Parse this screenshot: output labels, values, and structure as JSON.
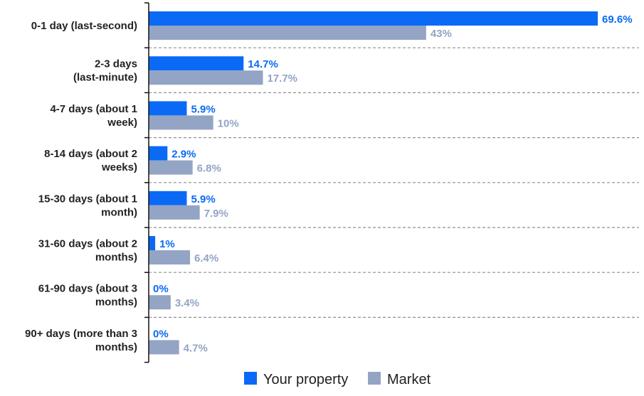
{
  "chart_data": {
    "type": "bar",
    "orientation": "horizontal",
    "categories": [
      [
        "0-1 day (last-second)"
      ],
      [
        "2-3 days",
        "(last-minute)"
      ],
      [
        "4-7 days (about 1",
        "week)"
      ],
      [
        "8-14 days (about 2",
        "weeks)"
      ],
      [
        "15-30 days (about 1",
        "month)"
      ],
      [
        "31-60 days (about 2",
        "months)"
      ],
      [
        "61-90 days (about 3",
        "months)"
      ],
      [
        "90+ days (more than 3",
        "months)"
      ]
    ],
    "series": [
      {
        "name": "Your property",
        "color": "#0a6af5",
        "values": [
          69.6,
          14.7,
          5.9,
          2.9,
          5.9,
          1,
          0,
          0
        ],
        "labels": [
          "69.6%",
          "14.7%",
          "5.9%",
          "2.9%",
          "5.9%",
          "1%",
          "0%",
          "0%"
        ]
      },
      {
        "name": "Market",
        "color": "#93a4c4",
        "values": [
          43,
          17.7,
          10,
          6.8,
          7.9,
          6.4,
          3.4,
          4.7
        ],
        "labels": [
          "43%",
          "17.7%",
          "10%",
          "6.8%",
          "7.9%",
          "6.4%",
          "3.4%",
          "4.7%"
        ]
      }
    ],
    "xlim": [
      0,
      69.6
    ],
    "grid": "dashed separators between categories",
    "legend_position": "bottom"
  }
}
